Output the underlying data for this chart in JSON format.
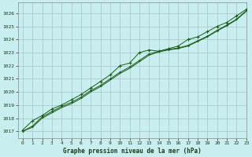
{
  "title": "Graphe pression niveau de la mer (hPa)",
  "background_color": "#c8eef0",
  "grid_color": "#b0c8c8",
  "line_color": "#1a5c1a",
  "marker_color": "#1a5c1a",
  "xlim": [
    -0.5,
    23
  ],
  "ylim": [
    1016.5,
    1026.8
  ],
  "yticks": [
    1017,
    1018,
    1019,
    1020,
    1021,
    1022,
    1023,
    1024,
    1025,
    1026
  ],
  "xticks": [
    0,
    1,
    2,
    3,
    4,
    5,
    6,
    7,
    8,
    9,
    10,
    11,
    12,
    13,
    14,
    15,
    16,
    17,
    18,
    19,
    20,
    21,
    22,
    23
  ],
  "series1_x": [
    0,
    1,
    2,
    3,
    4,
    5,
    6,
    7,
    8,
    9,
    10,
    11,
    12,
    13,
    14,
    15,
    16,
    17,
    18,
    19,
    20,
    21,
    22,
    23
  ],
  "series1_y": [
    1017.1,
    1017.8,
    1018.2,
    1018.7,
    1019.0,
    1019.4,
    1019.8,
    1020.3,
    1020.8,
    1021.3,
    1022.0,
    1022.2,
    1023.0,
    1023.2,
    1023.1,
    1023.3,
    1023.5,
    1024.0,
    1024.2,
    1024.6,
    1025.0,
    1025.3,
    1025.8,
    1026.3
  ],
  "series2_x": [
    0,
    1,
    2,
    3,
    4,
    5,
    6,
    7,
    8,
    9,
    10,
    11,
    12,
    13,
    14,
    15,
    16,
    17,
    18,
    19,
    20,
    21,
    22,
    23
  ],
  "series2_y": [
    1017.0,
    1017.4,
    1018.1,
    1018.5,
    1018.9,
    1019.2,
    1019.6,
    1020.1,
    1020.5,
    1021.0,
    1021.5,
    1021.9,
    1022.4,
    1022.9,
    1023.1,
    1023.25,
    1023.35,
    1023.55,
    1023.9,
    1024.25,
    1024.7,
    1025.1,
    1025.55,
    1026.2
  ],
  "series3_x": [
    0,
    1,
    2,
    3,
    4,
    5,
    6,
    7,
    8,
    9,
    10,
    11,
    12,
    13,
    14,
    15,
    16,
    17,
    18,
    19,
    20,
    21,
    22,
    23
  ],
  "series3_y": [
    1017.0,
    1017.3,
    1018.0,
    1018.4,
    1018.8,
    1019.1,
    1019.5,
    1020.0,
    1020.4,
    1020.9,
    1021.4,
    1021.8,
    1022.3,
    1022.8,
    1023.05,
    1023.2,
    1023.3,
    1023.5,
    1023.85,
    1024.2,
    1024.65,
    1025.05,
    1025.5,
    1026.15
  ]
}
